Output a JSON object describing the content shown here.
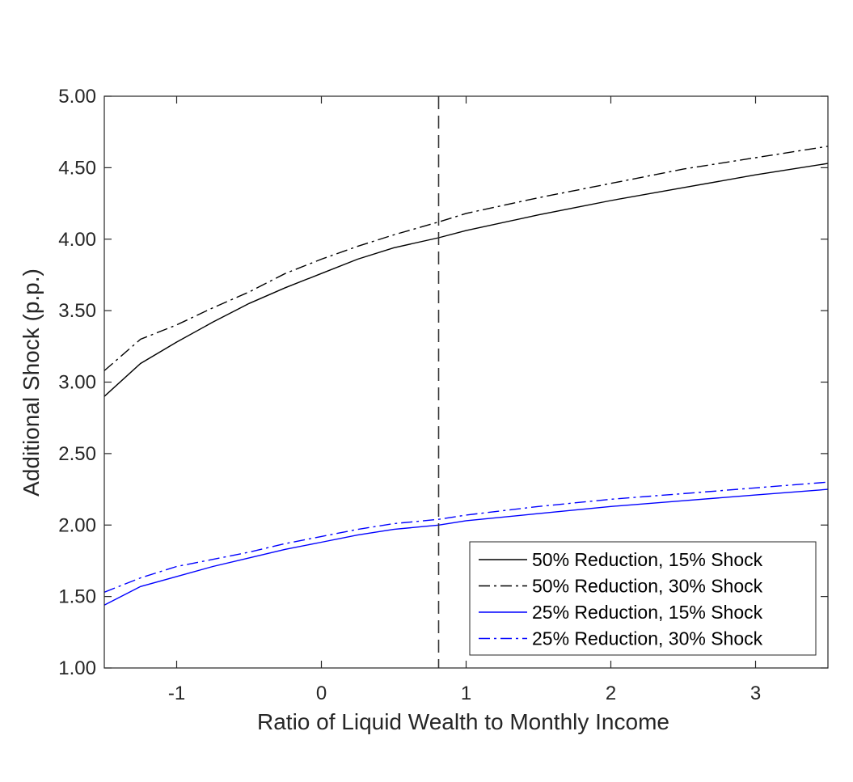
{
  "chart_data": {
    "type": "line",
    "title": "",
    "xlabel": "Ratio of Liquid Wealth to Monthly Income",
    "ylabel": "Additional Shock (p.p.)",
    "xlim": [
      -1.5,
      3.5
    ],
    "ylim": [
      1.0,
      5.0
    ],
    "xticks": [
      -1,
      0,
      1,
      2,
      3
    ],
    "xtick_labels": [
      "-1",
      "0",
      "1",
      "2",
      "3"
    ],
    "yticks": [
      1.0,
      1.5,
      2.0,
      2.5,
      3.0,
      3.5,
      4.0,
      4.5,
      5.0
    ],
    "ytick_labels": [
      "1.00",
      "1.50",
      "2.00",
      "2.50",
      "3.00",
      "3.50",
      "4.00",
      "4.50",
      "5.00"
    ],
    "grid": false,
    "legend_position": "bottom-right",
    "vline": {
      "x": 0.81,
      "style": "dashed",
      "color": "#333333"
    },
    "x": [
      -1.5,
      -1.25,
      -1.0,
      -0.75,
      -0.5,
      -0.25,
      0.0,
      0.25,
      0.5,
      0.81,
      1.0,
      1.5,
      2.0,
      2.5,
      3.0,
      3.5
    ],
    "series": [
      {
        "name": "50% Reduction, 15% Shock",
        "color": "#000000",
        "dash": "solid",
        "values": [
          2.9,
          3.13,
          3.28,
          3.42,
          3.55,
          3.66,
          3.76,
          3.86,
          3.94,
          4.01,
          4.06,
          4.17,
          4.27,
          4.36,
          4.45,
          4.53
        ]
      },
      {
        "name": "50% Reduction, 30% Shock",
        "color": "#000000",
        "dash": "dashdot",
        "values": [
          3.08,
          3.3,
          3.4,
          3.52,
          3.63,
          3.76,
          3.86,
          3.95,
          4.03,
          4.12,
          4.18,
          4.29,
          4.39,
          4.49,
          4.57,
          4.65
        ]
      },
      {
        "name": "25% Reduction, 15% Shock",
        "color": "#0000ff",
        "dash": "solid",
        "values": [
          1.44,
          1.57,
          1.64,
          1.71,
          1.77,
          1.83,
          1.88,
          1.93,
          1.97,
          2.0,
          2.03,
          2.08,
          2.13,
          2.17,
          2.21,
          2.25
        ]
      },
      {
        "name": "25% Reduction, 30% Shock",
        "color": "#0000ff",
        "dash": "dashdot",
        "values": [
          1.53,
          1.63,
          1.71,
          1.76,
          1.81,
          1.87,
          1.92,
          1.97,
          2.01,
          2.04,
          2.07,
          2.13,
          2.18,
          2.22,
          2.26,
          2.3
        ]
      }
    ]
  }
}
